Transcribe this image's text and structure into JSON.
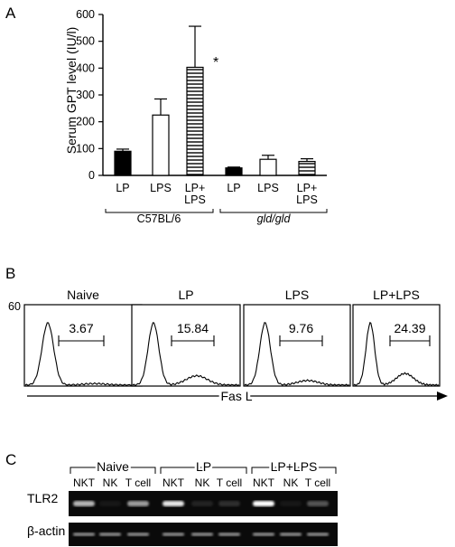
{
  "panels": {
    "a": "A",
    "b": "B",
    "c": "C"
  },
  "chart_data": {
    "type": "bar",
    "ylabel": "Serum GPT level (IU/l)",
    "ylim": [
      0,
      600
    ],
    "yticks": [
      "0",
      "100",
      "200",
      "300",
      "400",
      "500",
      "600"
    ],
    "categories": [
      "LP",
      "LPS",
      "LP+ LPS",
      "LP",
      "LPS",
      "LP+ LPS"
    ],
    "values": [
      90,
      225,
      403,
      28,
      60,
      52
    ],
    "errors": [
      8,
      60,
      153,
      3,
      15,
      10
    ],
    "fills": [
      "solid",
      "open",
      "hstripe",
      "solid",
      "open",
      "hstripe"
    ],
    "groups": [
      "C57BL/6",
      "gld/gld"
    ],
    "annotation": "*"
  },
  "flow": {
    "axis_label": "Fas L",
    "ymax_label": "60",
    "histograms": [
      {
        "title": "Naive",
        "value": "3.67"
      },
      {
        "title": "LP",
        "value": "15.84"
      },
      {
        "title": "LPS",
        "value": "9.76"
      },
      {
        "title": "LP+LPS",
        "value": "24.39"
      }
    ]
  },
  "gel": {
    "groups": [
      "Naive",
      "LP",
      "LP+LPS"
    ],
    "lanes": [
      "NKT",
      "NK",
      "T cell",
      "NKT",
      "NK",
      "T cell",
      "NKT",
      "NK",
      "T cell"
    ],
    "rows": [
      "TLR2",
      "β-actin"
    ],
    "tlr2_intensity": [
      0.7,
      0.05,
      0.6,
      0.9,
      0.1,
      0.15,
      1.0,
      0.05,
      0.3
    ],
    "actin_intensity": [
      0.5,
      0.5,
      0.5,
      0.5,
      0.5,
      0.5,
      0.5,
      0.5,
      0.5
    ]
  }
}
